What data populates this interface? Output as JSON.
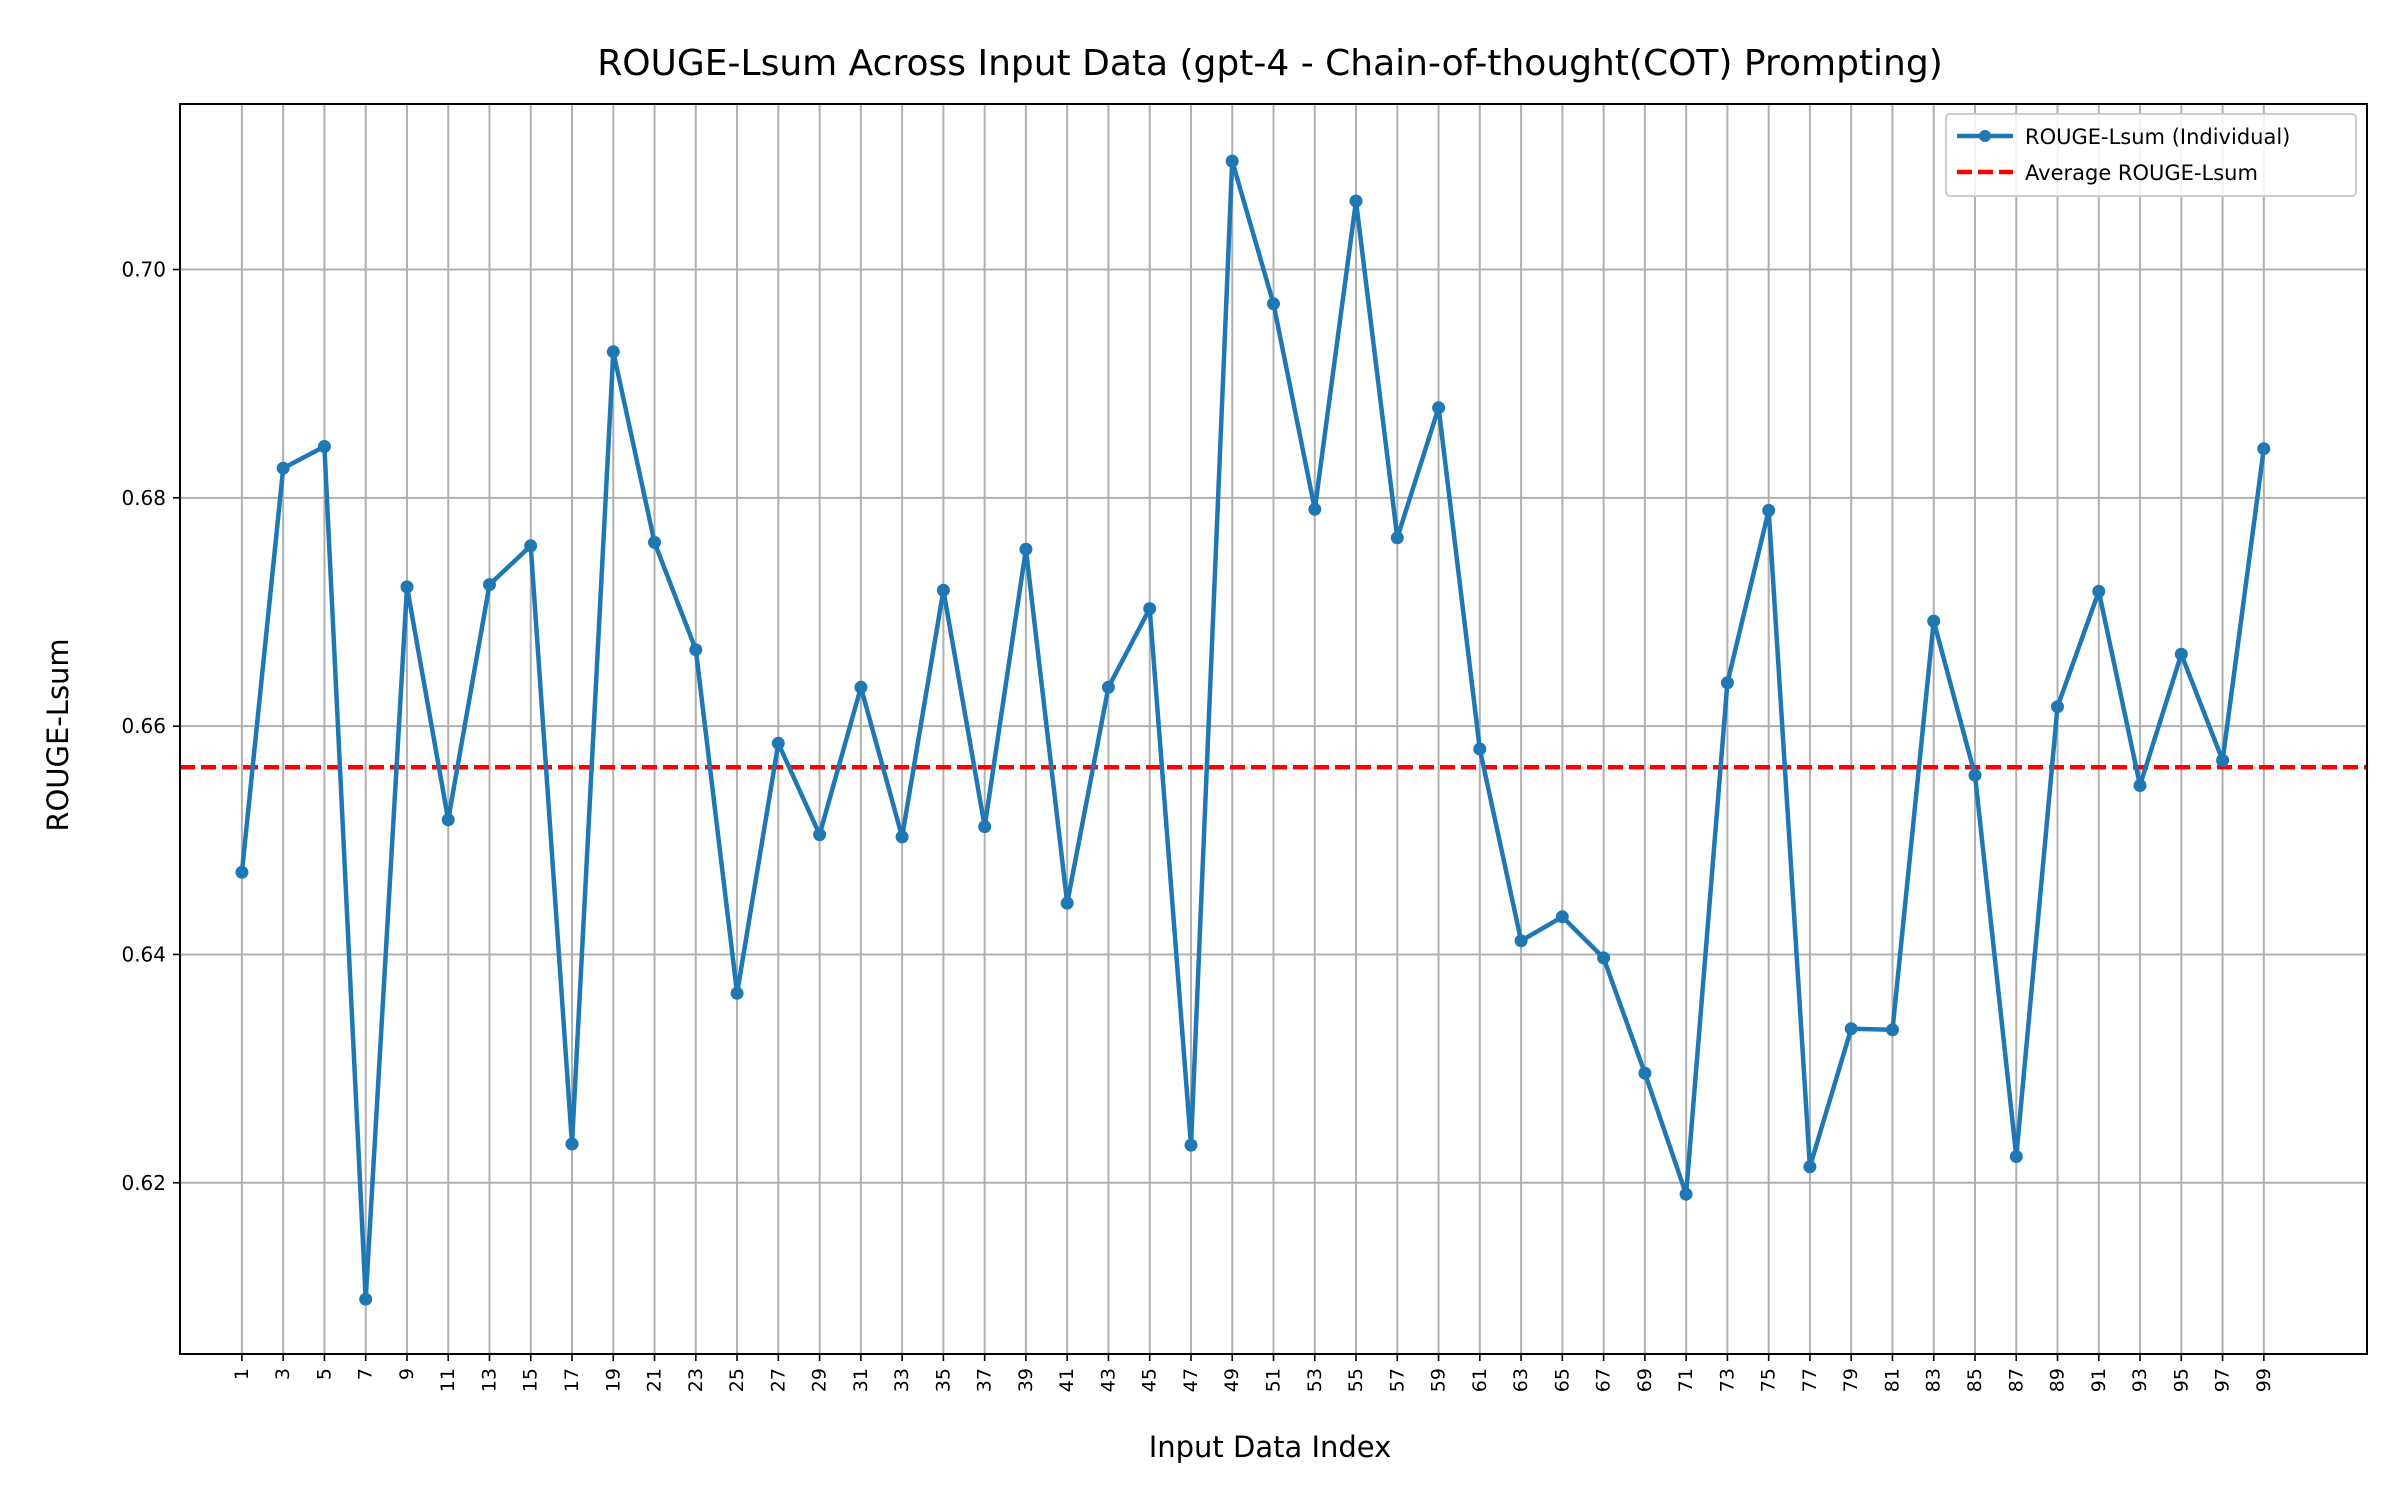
{
  "chart_data": {
    "type": "line",
    "title": "ROUGE-Lsum Across Input Data (gpt-4 - Chain-of-thought(COT) Prompting)",
    "xlabel": "Input Data Index",
    "ylabel": "ROUGE-Lsum",
    "xlim": [
      -2,
      104
    ],
    "ylim": [
      0.605,
      0.7145
    ],
    "x_tick_labels": [
      "1",
      "3",
      "5",
      "7",
      "9",
      "11",
      "13",
      "15",
      "17",
      "19",
      "21",
      "23",
      "25",
      "27",
      "29",
      "31",
      "33",
      "35",
      "37",
      "39",
      "41",
      "43",
      "45",
      "47",
      "49",
      "51",
      "53",
      "55",
      "57",
      "59",
      "61",
      "63",
      "65",
      "67",
      "69",
      "71",
      "73",
      "75",
      "77",
      "79",
      "81",
      "83",
      "85",
      "87",
      "89",
      "91",
      "93",
      "95",
      "97",
      "99"
    ],
    "y_ticks": [
      0.62,
      0.64,
      0.66,
      0.68,
      0.7
    ],
    "y_tick_labels": [
      "0.62",
      "0.64",
      "0.66",
      "0.68",
      "0.70"
    ],
    "grid": true,
    "legend_position": "top-right",
    "series": [
      {
        "name": "ROUGE-Lsum (Individual)",
        "color": "#1f77b4",
        "style": "solid-with-markers",
        "x": [
          1,
          3,
          5,
          7,
          9,
          11,
          13,
          15,
          17,
          19,
          21,
          23,
          25,
          27,
          29,
          31,
          33,
          35,
          37,
          39,
          41,
          43,
          45,
          47,
          49,
          51,
          53,
          55,
          57,
          59,
          61,
          63,
          65,
          67,
          69,
          71,
          73,
          75,
          77,
          79,
          81,
          83,
          85,
          87,
          89,
          91,
          93,
          95,
          97,
          99
        ],
        "y": [
          0.6472,
          0.6826,
          0.6845,
          0.6098,
          0.6722,
          0.6518,
          0.6724,
          0.6758,
          0.6234,
          0.6928,
          0.6761,
          0.6667,
          0.6366,
          0.6585,
          0.6505,
          0.6634,
          0.6503,
          0.6719,
          0.6512,
          0.6755,
          0.6445,
          0.6634,
          0.6703,
          0.6233,
          0.7095,
          0.697,
          0.679,
          0.706,
          0.6765,
          0.6879,
          0.658,
          0.6412,
          0.6433,
          0.6397,
          0.6296,
          0.619,
          0.6638,
          0.6789,
          0.6214,
          0.6335,
          0.6334,
          0.6692,
          0.6557,
          0.6223,
          0.6617,
          0.6718,
          0.6548,
          0.6663,
          0.657,
          0.6843
        ]
      },
      {
        "name": "Average ROUGE-Lsum",
        "color": "#ff0000",
        "style": "dashed",
        "value": 0.6564
      }
    ]
  }
}
